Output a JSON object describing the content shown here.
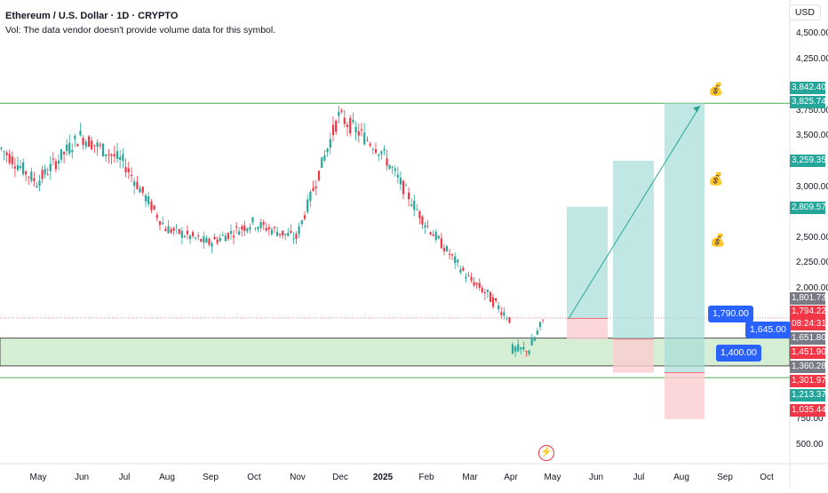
{
  "header": {
    "symbol_line": "Ethereum / U.S. Dollar · 1D · CRYPTO",
    "volume_note": "Vol: The data vendor doesn't provide volume data for this symbol.",
    "currency": "USD"
  },
  "axis": {
    "y_ticks": [
      "4,500.00",
      "4,250.00",
      "3,750.00",
      "3,500.00",
      "3,000.00",
      "2,500.00",
      "2,250.00",
      "2,000.00",
      "750.00",
      "500.00"
    ],
    "x_ticks": [
      "May",
      "Jun",
      "Jul",
      "Aug",
      "Sep",
      "Oct",
      "Nov",
      "Dec",
      "2025",
      "Feb",
      "Mar",
      "Apr",
      "May",
      "Jun",
      "Jul",
      "Aug",
      "Sep",
      "Oct"
    ]
  },
  "price_labels": [
    {
      "text": "3,842.40",
      "color": "#26a69a",
      "value": 3842.4
    },
    {
      "text": "3,825.74",
      "color": "#26a69a",
      "value": 3825.74
    },
    {
      "text": "3,259.35",
      "color": "#26a69a",
      "value": 3259.35
    },
    {
      "text": "2,809.57",
      "color": "#26a69a",
      "value": 2809.57
    },
    {
      "text": "1,801.73",
      "color": "#787b86",
      "value": 1801.73
    },
    {
      "text": "1,794.22",
      "color": "#f23645",
      "value": 1794.22
    },
    {
      "text": "08:24:31",
      "color": "#f23645",
      "value": null
    },
    {
      "text": "1,651.80",
      "color": "#787b86",
      "value": 1651.8
    },
    {
      "text": "1,451.90",
      "color": "#f23645",
      "value": 1451.9
    },
    {
      "text": "1,360.28",
      "color": "#787b86",
      "value": 1360.28
    },
    {
      "text": "1,301.97",
      "color": "#f23645",
      "value": 1301.97
    },
    {
      "text": "1,213.37",
      "color": "#26a69a",
      "value": 1213.37
    },
    {
      "text": "1,035.44",
      "color": "#f23645",
      "value": 1035.44
    }
  ],
  "callouts": [
    {
      "text": "1,790.00"
    },
    {
      "text": "1,645.00"
    },
    {
      "text": "1,400.00"
    }
  ],
  "icons": {
    "money_bag": "💰",
    "flash": "⚡"
  },
  "colors": {
    "up": "#26a69a",
    "down": "#f23645",
    "zone": "#b2dfb0",
    "profit": "#a7ddd8",
    "loss": "#fbcdcf",
    "accent": "#2962ff"
  },
  "chart_data": {
    "type": "candlestick",
    "title": "Ethereum / U.S. Dollar · 1D · CRYPTO",
    "ylabel": "USD",
    "ylim": [
      450,
      4650
    ],
    "series": [
      {
        "name": "ETHUSD",
        "monthly_path": [
          {
            "x": "May",
            "close": 3050
          },
          {
            "x": "Jun",
            "close": 3500
          },
          {
            "x": "Jul",
            "close": 3250
          },
          {
            "x": "Aug",
            "close": 2600
          },
          {
            "x": "Sep",
            "close": 2450
          },
          {
            "x": "Oct",
            "close": 2650
          },
          {
            "x": "Nov",
            "close": 2500
          },
          {
            "x": "Dec",
            "close": 3700
          },
          {
            "x": "2025",
            "close": 3350
          },
          {
            "x": "Feb",
            "close": 2650
          },
          {
            "x": "Mar",
            "close": 2100
          },
          {
            "x": "Apr",
            "close": 1790
          }
        ]
      }
    ],
    "levels": [
      3825.74,
      1651.8,
      1451.9,
      1360.28
    ],
    "positions": [
      {
        "entry": 1790,
        "target": 2809.57,
        "stop": 1645
      },
      {
        "entry": 1645,
        "target": 3259.35,
        "stop": 1400
      },
      {
        "entry": 1400,
        "target": 3825.74,
        "stop": 1035.44
      }
    ]
  }
}
